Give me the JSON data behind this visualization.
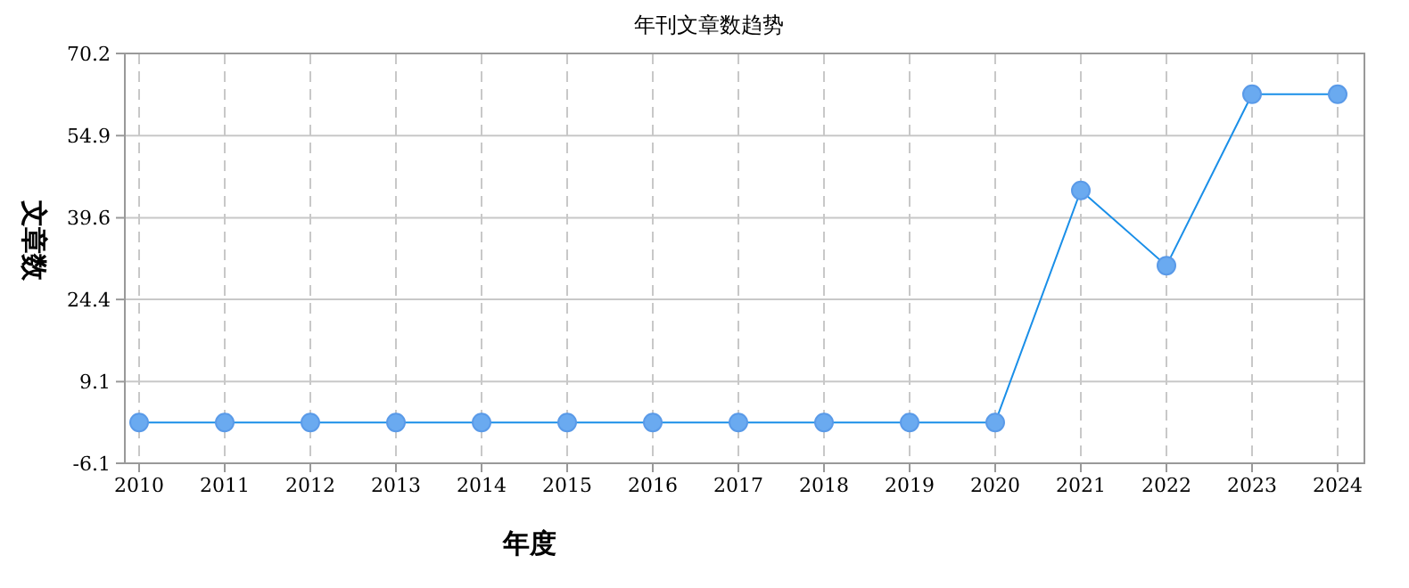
{
  "chart_data": {
    "type": "line",
    "title": "年刊文章数趋势",
    "xlabel": "年度",
    "ylabel": "文章数",
    "categories": [
      "2010",
      "2011",
      "2012",
      "2013",
      "2014",
      "2015",
      "2016",
      "2017",
      "2018",
      "2019",
      "2020",
      "2021",
      "2022",
      "2023",
      "2024"
    ],
    "series": [
      {
        "color": "#1a8fe8",
        "values": [
          1.5,
          1.5,
          1.5,
          1.5,
          1.5,
          1.5,
          1.5,
          1.5,
          1.5,
          1.5,
          1.5,
          44.7,
          30.7,
          62.6,
          62.6
        ]
      }
    ],
    "ylim": [
      -6.1,
      70.2
    ],
    "yticks": [
      -6.1,
      9.1,
      24.4,
      39.6,
      54.9,
      70.2
    ],
    "grid": true,
    "marker": "circle",
    "line_style": "solid"
  }
}
